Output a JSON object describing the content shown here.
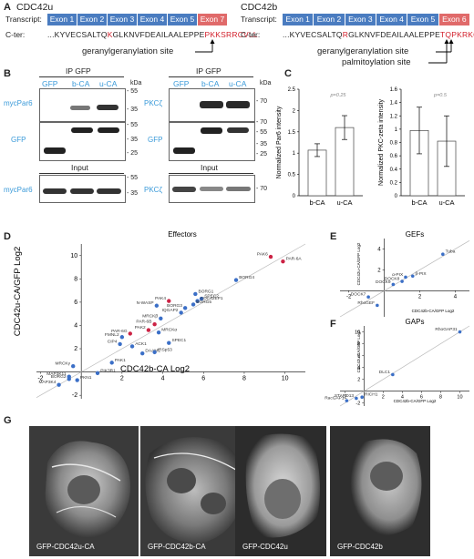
{
  "panelA": {
    "label": "A",
    "left": {
      "title": "CDC42u",
      "transcript_label": "Transcript:",
      "cter_label": "C-ter:",
      "exons": [
        "Exon 1",
        "Exon 2",
        "Exon 3",
        "Exon 4",
        "Exon 5",
        "Exon 7"
      ],
      "seq_black": "...KYVECSALTQ",
      "seq_red1": "K",
      "seq_black2": "GLKNVFDEAILAALEPPE",
      "seq_red2": "PKKSRRCVLL",
      "annotation": "geranylgeranylation site"
    },
    "right": {
      "title": "CDC42b",
      "transcript_label": "Transcript:",
      "cter_label": "C-ter:",
      "exons": [
        "Exon 1",
        "Exon 2",
        "Exon 3",
        "Exon 4",
        "Exon 5",
        "Exon 6"
      ],
      "seq_black": "...KYVECSALTQ",
      "seq_red1": "R",
      "seq_black2": "GLKNVFDEAILAALEPPE",
      "seq_red2": "TQPKRKCCIF",
      "annotation1": "geranylgeranylation site",
      "annotation2": "palmitoylation site"
    }
  },
  "panelB": {
    "label": "B",
    "ip": "IP GFP",
    "input": "Input",
    "lanes": [
      "GFP",
      "b-CA",
      "u-CA"
    ],
    "kda": "kDa",
    "left_rows": [
      "mycPar6",
      "GFP",
      "mycPar6"
    ],
    "right_rows": [
      "PKCζ",
      "GFP",
      "PKCζ"
    ],
    "left_markers": [
      [
        "55",
        "35"
      ],
      [
        "55",
        "35",
        "25"
      ],
      [
        "55",
        "35"
      ]
    ],
    "right_markers": [
      [
        "70"
      ],
      [
        "70",
        "55",
        "35",
        "25"
      ],
      [
        "70"
      ]
    ]
  },
  "panelC": {
    "label": "C",
    "chart_data": [
      {
        "type": "bar",
        "categories": [
          "b-CA",
          "u-CA"
        ],
        "values": [
          1.07,
          1.6
        ],
        "errors": [
          0.15,
          0.28
        ],
        "ylabel": "Normalized Par6 intensity",
        "ylim": [
          0,
          2.5
        ],
        "yticks": [
          "0",
          "0.5",
          "1",
          "1.5",
          "2",
          "2.5"
        ],
        "annotation": "p=0.25"
      },
      {
        "type": "bar",
        "categories": [
          "b-CA",
          "u-CA"
        ],
        "values": [
          0.98,
          0.82
        ],
        "errors": [
          0.35,
          0.38
        ],
        "ylabel": "Normalized PKC-zeta intensity",
        "ylim": [
          0,
          1.6
        ],
        "yticks": [
          "0",
          "0.2",
          "0.4",
          "0.6",
          "0.8",
          "1",
          "1.2",
          "1.4",
          "1.6"
        ],
        "annotation": "p=0.5"
      }
    ]
  },
  "panelD": {
    "label": "D",
    "chart_data": {
      "type": "scatter",
      "title": "Effectors",
      "xlabel": "CDC42b-CA Log2",
      "ylabel": "CDC42u-CA/GFP Log2",
      "xlim": [
        -2.2,
        11
      ],
      "ylim": [
        -2.3,
        11
      ],
      "xticks": [
        -2,
        2,
        4,
        6,
        8,
        10
      ],
      "yticks": [
        -2,
        2,
        4,
        6,
        8,
        10
      ],
      "points": [
        {
          "label": "PAK6",
          "x": 9.3,
          "y": 9.9,
          "color": "#cc2244"
        },
        {
          "label": "PAR-6A",
          "x": 9.9,
          "y": 9.5,
          "color": "#cc2244"
        },
        {
          "label": "BORG4",
          "x": 7.6,
          "y": 7.9,
          "color": "#3b6fc7"
        },
        {
          "label": "BORG1",
          "x": 5.6,
          "y": 6.7,
          "color": "#3b6fc7"
        },
        {
          "label": "SPEC2",
          "x": 5.9,
          "y": 6.3,
          "color": "#3b6fc7"
        },
        {
          "label": "CDC42EP1",
          "x": 5.7,
          "y": 6.1,
          "color": "#3b6fc7"
        },
        {
          "label": "BORG5",
          "x": 5.5,
          "y": 5.8,
          "color": "#3b6fc7"
        },
        {
          "label": "PAK4",
          "x": 4.3,
          "y": 6.1,
          "color": "#cc2244"
        },
        {
          "label": "N-WASP",
          "x": 3.7,
          "y": 5.7,
          "color": "#3b6fc7"
        },
        {
          "label": "BORG3",
          "x": 5.1,
          "y": 5.5,
          "color": "#3b6fc7"
        },
        {
          "label": "IQGAP2",
          "x": 4.9,
          "y": 5.1,
          "color": "#3b6fc7"
        },
        {
          "label": "MRCKβ",
          "x": 3.9,
          "y": 4.6,
          "color": "#3b6fc7"
        },
        {
          "label": "PAR-6B",
          "x": 3.6,
          "y": 4.1,
          "color": "#cc2244"
        },
        {
          "label": "PAK2",
          "x": 3.3,
          "y": 3.6,
          "color": "#cc2244"
        },
        {
          "label": "MRCKα",
          "x": 3.8,
          "y": 3.4,
          "color": "#3b6fc7"
        },
        {
          "label": "FMNL2",
          "x": 2.0,
          "y": 3.0,
          "color": "#3b6fc7"
        },
        {
          "label": "PAR-6G",
          "x": 2.4,
          "y": 3.3,
          "color": "#cc2244"
        },
        {
          "label": "CIP4",
          "x": 1.9,
          "y": 2.4,
          "color": "#3b6fc7"
        },
        {
          "label": "ACK1",
          "x": 2.5,
          "y": 2.2,
          "color": "#3b6fc7"
        },
        {
          "label": "SPEC1",
          "x": 4.3,
          "y": 2.5,
          "color": "#3b6fc7"
        },
        {
          "label": "DAAM1",
          "x": 3.0,
          "y": 1.6,
          "color": "#3b6fc7"
        },
        {
          "label": "IRSp53",
          "x": 3.6,
          "y": 1.7,
          "color": "#3b6fc7"
        },
        {
          "label": "PAK1",
          "x": 1.5,
          "y": 0.8,
          "color": "#3b6fc7"
        },
        {
          "label": "PIK3R1",
          "x": 0.8,
          "y": -0.1,
          "color": "#3b6fc7"
        },
        {
          "label": "MRCKγ",
          "x": -0.4,
          "y": 0.5,
          "color": "#3b6fc7"
        },
        {
          "label": "MAP3K11",
          "x": -0.6,
          "y": -0.4,
          "color": "#3b6fc7"
        },
        {
          "label": "BORG2",
          "x": -0.6,
          "y": -0.6,
          "color": "#3b6fc7"
        },
        {
          "label": "MAP3K4",
          "x": -1.1,
          "y": -1.1,
          "color": "#3b6fc7"
        },
        {
          "label": "PKN1",
          "x": -0.2,
          "y": -0.7,
          "color": "#3b6fc7"
        }
      ]
    }
  },
  "panelE": {
    "label": "E",
    "chart_data": {
      "type": "scatter",
      "title": "GEFs",
      "xlabel": "CDC42b-CA/GFP Log2",
      "ylabel": "CDC42u-CA/GFP Log2",
      "xticks": [
        -2,
        2,
        4
      ],
      "yticks": [
        2,
        4
      ],
      "points": [
        {
          "label": "Tuba",
          "x": 3.3,
          "y": 3.5
        },
        {
          "label": "β-PIX",
          "x": 1.6,
          "y": 1.4
        },
        {
          "label": "α-PIX",
          "x": 1.2,
          "y": 1.3
        },
        {
          "label": "DOCK8",
          "x": 1.0,
          "y": 0.9
        },
        {
          "label": "DOCK9",
          "x": 0.5,
          "y": 0.6
        },
        {
          "label": "DOCK7",
          "x": -0.9,
          "y": -0.6
        },
        {
          "label": "RhoGEF",
          "x": -0.4,
          "y": -1.4
        }
      ]
    }
  },
  "panelF": {
    "label": "F",
    "chart_data": {
      "type": "scatter",
      "title": "GAPs",
      "xlabel": "CDC42b-CA/GFP Log2",
      "ylabel": "CDC42u-CA/GFP Log2",
      "xticks": [
        -2,
        2,
        4,
        6,
        8,
        10
      ],
      "yticks": [
        -2,
        2,
        4,
        6,
        8,
        10
      ],
      "points": [
        {
          "label": "RhoGAP31",
          "x": 10,
          "y": 10
        },
        {
          "label": "DLC1",
          "x": 3.0,
          "y": 2.8
        },
        {
          "label": "STARD13",
          "x": -0.8,
          "y": -1.2
        },
        {
          "label": "RICH1",
          "x": -0.2,
          "y": -1.0
        },
        {
          "label": "RacGAP1",
          "x": -1.8,
          "y": -1.6
        }
      ]
    }
  },
  "panelG": {
    "label": "G",
    "images": [
      "GFP-CDC42u-CA",
      "GFP-CDC42b-CA",
      "GFP-CDC42u",
      "GFP-CDC42b"
    ]
  }
}
